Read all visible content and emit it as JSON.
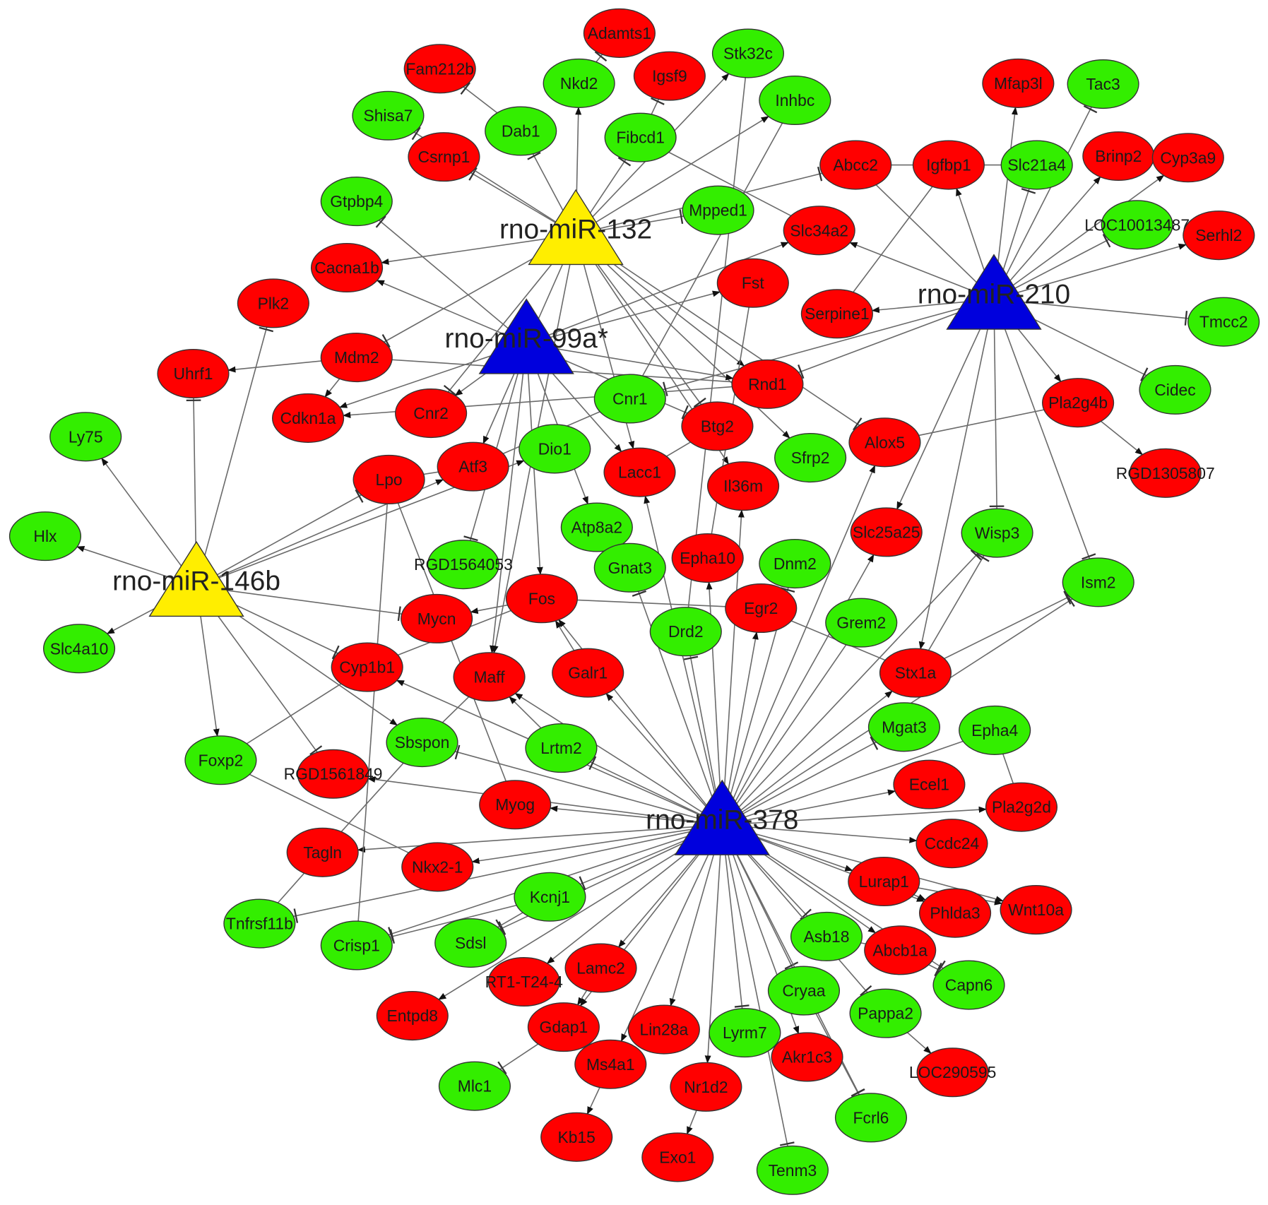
{
  "colors": {
    "upregulated": "#ff0000",
    "downregulated": "#33ee00",
    "mirna_yellow": "#ffee00",
    "mirna_blue": "#0000dd",
    "edge": "#6a6a6a"
  },
  "mirnas": [
    {
      "id": "rno-miR-132",
      "label": "rno-miR-132",
      "color": "#ffee00"
    },
    {
      "id": "rno-miR-99a*",
      "label": "rno-miR-99a*",
      "color": "#0000dd"
    },
    {
      "id": "rno-miR-210",
      "label": "rno-miR-210",
      "color": "#0000dd"
    },
    {
      "id": "rno-miR-146b",
      "label": "rno-miR-146b",
      "color": "#ffee00"
    },
    {
      "id": "rno-miR-378",
      "label": "rno-miR-378",
      "color": "#0000dd"
    }
  ],
  "genes_green": [
    "Stk32c",
    "Nkd2",
    "Inhbc",
    "Shisa7",
    "Dab1",
    "Fibcd1",
    "Gtpbp4",
    "Mpped1",
    "Tac3",
    "Slc21a4",
    "LOC10013487",
    "Tmcc2",
    "Cidec",
    "Ly75",
    "Hlx",
    "Cnr1",
    "Dio1",
    "Sfrp2",
    "Atp8a2",
    "RGD1564053",
    "Gnat3",
    "Dnm2",
    "Wisp3",
    "Ism2",
    "Drd2",
    "Grem2",
    "Slc4a10",
    "Mgat3",
    "Epha4",
    "Sbspon",
    "Lrtm2",
    "Foxp2",
    "Kcnj1",
    "Tnfrsf11b",
    "Crisp1",
    "Sdsl",
    "Asb18",
    "Capn6",
    "Cryaa",
    "Pappa2",
    "Lyrm7",
    "Mlc1",
    "Fcrl6",
    "Tenm3"
  ],
  "genes_red": [
    "Adamts1",
    "Fam212b",
    "Igsf9",
    "Csrnp1",
    "Mfap3l",
    "Abcc2",
    "Igfbp1",
    "Brinp2",
    "Cyp3a9",
    "Serhl2",
    "Slc34a2",
    "Cacna1b",
    "Plk2",
    "Fst",
    "Serpine1",
    "Mdm2",
    "Uhrf1",
    "Rnd1",
    "Pla2g4b",
    "Cdkn1a",
    "Cnr2",
    "Btg2",
    "Alox5",
    "RGD1305807",
    "Atf3",
    "Lpo",
    "Lacc1",
    "Il36m",
    "Slc25a25",
    "Epha10",
    "Fos",
    "Egr2",
    "Mycn",
    "Cyp1b1",
    "Maff",
    "Galr1",
    "Stx1a",
    "RGD1561849",
    "Myog",
    "Ecel1",
    "Pla2g2d",
    "Ccdc24",
    "Tagln",
    "Nkx2-1",
    "Lurap1",
    "Phlda3",
    "Wnt10a",
    "Abcb1a",
    "Lamc2",
    "RT1-T24-4",
    "Entpd8",
    "Gdap1",
    "Lin28a",
    "Akr1c3",
    "LOC290595",
    "Ms4a1",
    "Nr1d2",
    "Kb15",
    "Exo1"
  ],
  "edges": [
    [
      "rno-miR-146b",
      "Ly75",
      "arrow"
    ],
    [
      "rno-miR-146b",
      "Hlx",
      "arrow"
    ],
    [
      "rno-miR-146b",
      "Slc4a10",
      "arrow"
    ],
    [
      "rno-miR-146b",
      "Uhrf1",
      "inhibit"
    ],
    [
      "rno-miR-146b",
      "Plk2",
      "inhibit"
    ],
    [
      "rno-miR-146b",
      "Foxp2",
      "arrow"
    ],
    [
      "rno-miR-146b",
      "RGD1561849",
      "inhibit"
    ],
    [
      "rno-miR-146b",
      "Sbspon",
      "arrow"
    ],
    [
      "rno-miR-146b",
      "Cyp1b1",
      "inhibit"
    ],
    [
      "rno-miR-146b",
      "Mycn",
      "inhibit"
    ],
    [
      "rno-miR-146b",
      "Lpo",
      "inhibit"
    ],
    [
      "rno-miR-146b",
      "Atf3",
      "arrow"
    ],
    [
      "rno-miR-146b",
      "Dio1",
      "arrow"
    ],
    [
      "rno-miR-132",
      "Csrnp1",
      "inhibit"
    ],
    [
      "rno-miR-132",
      "Dab1",
      "inhibit"
    ],
    [
      "rno-miR-132",
      "Nkd2",
      "arrow"
    ],
    [
      "rno-miR-132",
      "Fibcd1",
      "inhibit"
    ],
    [
      "rno-miR-132",
      "Stk32c",
      "arrow"
    ],
    [
      "rno-miR-132",
      "Inhbc",
      "arrow"
    ],
    [
      "rno-miR-132",
      "Shisa7",
      "inhibit"
    ],
    [
      "rno-miR-132",
      "Cacna1b",
      "arrow"
    ],
    [
      "rno-miR-132",
      "Mdm2",
      "inhibit"
    ],
    [
      "rno-miR-132",
      "Btg2",
      "inhibit"
    ],
    [
      "rno-miR-132",
      "Rnd1",
      "arrow"
    ],
    [
      "rno-miR-132",
      "Lacc1",
      "arrow"
    ],
    [
      "rno-miR-132",
      "Atf3",
      "arrow"
    ],
    [
      "rno-miR-132",
      "Cnr2",
      "inhibit"
    ],
    [
      "rno-miR-132",
      "Il36m",
      "arrow"
    ],
    [
      "rno-miR-132",
      "Maff",
      "arrow"
    ],
    [
      "rno-miR-132",
      "Sfrp2",
      "arrow"
    ],
    [
      "rno-miR-132",
      "Alox5",
      "inhibit"
    ],
    [
      "rno-miR-132",
      "Abcc2",
      "inhibit"
    ],
    [
      "rno-miR-132",
      "Mpped1",
      "inhibit"
    ],
    [
      "rno-miR-99a*",
      "Cacna1b",
      "arrow"
    ],
    [
      "rno-miR-99a*",
      "Gtpbp4",
      "inhibit"
    ],
    [
      "rno-miR-99a*",
      "Slc34a2",
      "arrow"
    ],
    [
      "rno-miR-99a*",
      "Fst",
      "arrow"
    ],
    [
      "rno-miR-99a*",
      "Cdkn1a",
      "arrow"
    ],
    [
      "rno-miR-99a*",
      "Fos",
      "arrow"
    ],
    [
      "rno-miR-99a*",
      "Maff",
      "arrow"
    ],
    [
      "rno-miR-99a*",
      "Cnr2",
      "arrow"
    ],
    [
      "rno-miR-99a*",
      "Atp8a2",
      "arrow"
    ],
    [
      "rno-miR-99a*",
      "Lacc1",
      "arrow"
    ],
    [
      "rno-miR-99a*",
      "RGD1564053",
      "inhibit"
    ],
    [
      "rno-miR-99a*",
      "Btg2",
      "inhibit"
    ],
    [
      "rno-miR-99a*",
      "Rnd1",
      "arrow"
    ],
    [
      "rno-miR-210",
      "Abcc2",
      "line"
    ],
    [
      "rno-miR-210",
      "Igfbp1",
      "arrow"
    ],
    [
      "rno-miR-210",
      "Mfap3l",
      "arrow"
    ],
    [
      "rno-miR-210",
      "Slc21a4",
      "inhibit"
    ],
    [
      "rno-miR-210",
      "Tac3",
      "inhibit"
    ],
    [
      "rno-miR-210",
      "Brinp2",
      "arrow"
    ],
    [
      "rno-miR-210",
      "Cyp3a9",
      "arrow"
    ],
    [
      "rno-miR-210",
      "LOC10013487",
      "inhibit"
    ],
    [
      "rno-miR-210",
      "Serhl2",
      "arrow"
    ],
    [
      "rno-miR-210",
      "Tmcc2",
      "inhibit"
    ],
    [
      "rno-miR-210",
      "Cidec",
      "inhibit"
    ],
    [
      "rno-miR-210",
      "Pla2g4b",
      "arrow"
    ],
    [
      "rno-miR-210",
      "Wisp3",
      "inhibit"
    ],
    [
      "rno-miR-210",
      "Ism2",
      "inhibit"
    ],
    [
      "rno-miR-210",
      "Stx1a",
      "arrow"
    ],
    [
      "rno-miR-210",
      "Slc25a25",
      "arrow"
    ],
    [
      "rno-miR-210",
      "Serpine1",
      "arrow"
    ],
    [
      "rno-miR-210",
      "Slc34a2",
      "arrow"
    ],
    [
      "rno-miR-210",
      "Rnd1",
      "inhibit"
    ],
    [
      "rno-miR-210",
      "Cnr1",
      "inhibit"
    ],
    [
      "rno-miR-378",
      "Myog",
      "arrow"
    ],
    [
      "rno-miR-378",
      "RGD1561849",
      "arrow"
    ],
    [
      "rno-miR-378",
      "Tagln",
      "arrow"
    ],
    [
      "rno-miR-378",
      "Nkx2-1",
      "arrow"
    ],
    [
      "rno-miR-378",
      "Tnfrsf11b",
      "inhibit"
    ],
    [
      "rno-miR-378",
      "Crisp1",
      "inhibit"
    ],
    [
      "rno-miR-378",
      "Sdsl",
      "inhibit"
    ],
    [
      "rno-miR-378",
      "Kcnj1",
      "inhibit"
    ],
    [
      "rno-miR-378",
      "Entpd8",
      "arrow"
    ],
    [
      "rno-miR-378",
      "RT1-T24-4",
      "arrow"
    ],
    [
      "rno-miR-378",
      "Lamc2",
      "arrow"
    ],
    [
      "rno-miR-378",
      "Gdap1",
      "arrow"
    ],
    [
      "rno-miR-378",
      "Ms4a1",
      "arrow"
    ],
    [
      "rno-miR-378",
      "Lin28a",
      "arrow"
    ],
    [
      "rno-miR-378",
      "Nr1d2",
      "arrow"
    ],
    [
      "rno-miR-378",
      "Lyrm7",
      "inhibit"
    ],
    [
      "rno-miR-378",
      "Tenm3",
      "inhibit"
    ],
    [
      "rno-miR-378",
      "Akr1c3",
      "arrow"
    ],
    [
      "rno-miR-378",
      "Cryaa",
      "inhibit"
    ],
    [
      "rno-miR-378",
      "Asb18",
      "inhibit"
    ],
    [
      "rno-miR-378",
      "Pappa2",
      "inhibit"
    ],
    [
      "rno-miR-378",
      "Fcrl6",
      "inhibit"
    ],
    [
      "rno-miR-378",
      "Abcb1a",
      "arrow"
    ],
    [
      "rno-miR-378",
      "Capn6",
      "inhibit"
    ],
    [
      "rno-miR-378",
      "Lurap1",
      "arrow"
    ],
    [
      "rno-miR-378",
      "Phlda3",
      "arrow"
    ],
    [
      "rno-miR-378",
      "Wnt10a",
      "arrow"
    ],
    [
      "rno-miR-378",
      "Ccdc24",
      "arrow"
    ],
    [
      "rno-miR-378",
      "Pla2g2d",
      "arrow"
    ],
    [
      "rno-miR-378",
      "Ecel1",
      "arrow"
    ],
    [
      "rno-miR-378",
      "Mgat3",
      "inhibit"
    ],
    [
      "rno-miR-378",
      "Stx1a",
      "arrow"
    ],
    [
      "rno-miR-378",
      "Slc25a25",
      "arrow"
    ],
    [
      "rno-miR-378",
      "Alox5",
      "arrow"
    ],
    [
      "rno-miR-378",
      "Egr2",
      "arrow"
    ],
    [
      "rno-miR-378",
      "Epha10",
      "arrow"
    ],
    [
      "rno-miR-378",
      "Il36m",
      "arrow"
    ],
    [
      "rno-miR-378",
      "Drd2",
      "inhibit"
    ],
    [
      "rno-miR-378",
      "Gnat3",
      "inhibit"
    ],
    [
      "rno-miR-378",
      "Galr1",
      "arrow"
    ],
    [
      "rno-miR-378",
      "Fos",
      "arrow"
    ],
    [
      "rno-miR-378",
      "Maff",
      "arrow"
    ],
    [
      "rno-miR-378",
      "Cyp1b1",
      "arrow"
    ],
    [
      "rno-miR-378",
      "Sbspon",
      "inhibit"
    ],
    [
      "rno-miR-378",
      "Lrtm2",
      "inhibit"
    ],
    [
      "rno-miR-378",
      "Lacc1",
      "arrow"
    ],
    [
      "rno-miR-378",
      "Dnm2",
      "inhibit"
    ],
    [
      "rno-miR-378",
      "Wisp3",
      "inhibit"
    ],
    [
      "rno-miR-378",
      "Ism2",
      "inhibit"
    ],
    [
      "rno-miR-378",
      "Grem2",
      "line"
    ],
    [
      "rno-miR-378",
      "Epha4",
      "line"
    ],
    [
      "Lamc2",
      "Gdap1",
      "arrow"
    ],
    [
      "Gdap1",
      "Mlc1",
      "inhibit"
    ],
    [
      "Ms4a1",
      "Kb15",
      "arrow"
    ],
    [
      "Nr1d2",
      "Exo1",
      "arrow"
    ],
    [
      "Pappa2",
      "LOC290595",
      "arrow"
    ],
    [
      "Lurap1",
      "Phlda3",
      "arrow"
    ],
    [
      "Lurap1",
      "Wnt10a",
      "arrow"
    ],
    [
      "Pla2g4b",
      "RGD1305807",
      "arrow"
    ],
    [
      "Igfbp1",
      "Abcc2",
      "line"
    ],
    [
      "Slc21a4",
      "Igfbp1",
      "line"
    ],
    [
      "Fos",
      "Mycn",
      "arrow"
    ],
    [
      "Galr1",
      "Fos",
      "arrow"
    ],
    [
      "Lrtm2",
      "Maff",
      "arrow"
    ],
    [
      "Mdm2",
      "Uhrf1",
      "arrow"
    ],
    [
      "Mdm2",
      "Cdkn1a",
      "arrow"
    ],
    [
      "Foxp2",
      "Cyp1b1",
      "line"
    ],
    [
      "Tagln",
      "Tnfrsf11b",
      "line"
    ],
    [
      "Sbspon",
      "Tagln",
      "line"
    ],
    [
      "Foxp2",
      "Nkx2-1",
      "line"
    ],
    [
      "Dab1",
      "Fam212b",
      "inhibit"
    ],
    [
      "Nkd2",
      "Adamts1",
      "inhibit"
    ],
    [
      "Fibcd1",
      "Igsf9",
      "inhibit"
    ],
    [
      "Crisp1",
      "Lpo",
      "line"
    ],
    [
      "Epha4",
      "Pla2g2d",
      "line"
    ],
    [
      "Kcnj1",
      "Sdsl",
      "inhibit"
    ],
    [
      "Kcnj1",
      "Crisp1",
      "inhibit"
    ],
    [
      "Asb18",
      "Abcb1a",
      "line"
    ],
    [
      "Abcb1a",
      "Capn6",
      "inhibit"
    ],
    [
      "Cryaa",
      "Fcrl6",
      "inhibit"
    ],
    [
      "Maff",
      "Sbspon",
      "line"
    ],
    [
      "Fos",
      "Cyp1b1",
      "line"
    ],
    [
      "Igfbp1",
      "Serpine1",
      "line"
    ],
    [
      "Pla2g4b",
      "Alox5",
      "line"
    ],
    [
      "Stx1a",
      "Ism2",
      "inhibit"
    ],
    [
      "Stx1a",
      "Wisp3",
      "inhibit"
    ],
    [
      "Egr2",
      "Stx1a",
      "line"
    ],
    [
      "Fos",
      "Egr2",
      "line"
    ],
    [
      "Atf3",
      "Lpo",
      "line"
    ],
    [
      "Cnr1",
      "Atf3",
      "line"
    ],
    [
      "Btg2",
      "Lacc1",
      "line"
    ],
    [
      "Rnd1",
      "Cdkn1a",
      "arrow"
    ],
    [
      "Mdm2",
      "Rnd1",
      "line"
    ],
    [
      "Fst",
      "Epha10",
      "line"
    ],
    [
      "Inhbc",
      "Cnr1",
      "line"
    ],
    [
      "Stk32c",
      "Drd2",
      "line"
    ],
    [
      "Fibcd1",
      "Slc34a2",
      "line"
    ],
    [
      "Myog",
      "Lpo",
      "line"
    ]
  ]
}
